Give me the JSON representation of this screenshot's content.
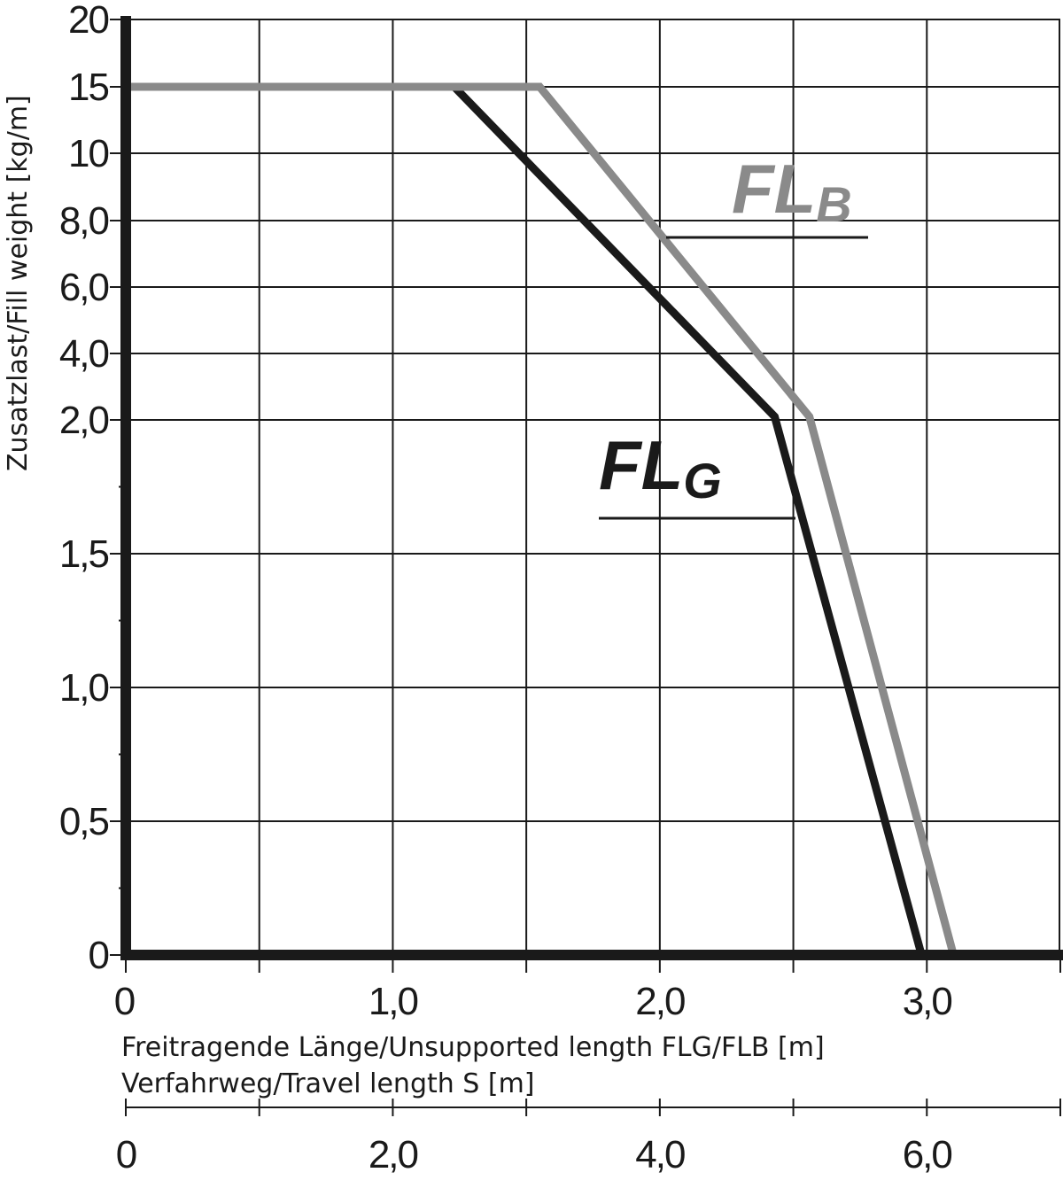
{
  "chart_data": {
    "type": "line",
    "ylabel": "Zusatzlast/Fill weight [kg/m]",
    "xlabel": "Freitragende Länge/Unsupported length FLG/FLB [m]",
    "x2label": "Verfahrweg/Travel length S [m]",
    "xlim": [
      0,
      3.5
    ],
    "x2lim": [
      0,
      7.0
    ],
    "x_ticks": [
      {
        "value": 0,
        "label": "0"
      },
      {
        "value": 1.0,
        "label": "1,0"
      },
      {
        "value": 2.0,
        "label": "2,0"
      },
      {
        "value": 3.0,
        "label": "3,0"
      }
    ],
    "x2_ticks": [
      {
        "value": 0,
        "label": "0"
      },
      {
        "value": 2.0,
        "label": "2,0"
      },
      {
        "value": 4.0,
        "label": "4,0"
      },
      {
        "value": 6.0,
        "label": "6,0"
      }
    ],
    "y_scale": "piecewise (non-linear)",
    "y_ticks": [
      {
        "value": 0,
        "label": "0"
      },
      {
        "value": 0.5,
        "label": "0,5"
      },
      {
        "value": 1.0,
        "label": "1,0"
      },
      {
        "value": 1.5,
        "label": "1,5"
      },
      {
        "value": 2.0,
        "label": "2,0"
      },
      {
        "value": 4.0,
        "label": "4,0"
      },
      {
        "value": 6.0,
        "label": "6,0"
      },
      {
        "value": 8.0,
        "label": "8,0"
      },
      {
        "value": 10,
        "label": "10"
      },
      {
        "value": 15,
        "label": "15"
      },
      {
        "value": 20,
        "label": "20"
      }
    ],
    "grid": true,
    "series": [
      {
        "name": "FL",
        "subscript": "G",
        "color": "#1a1a1a",
        "points": [
          [
            0,
            15
          ],
          [
            1.23,
            15
          ],
          [
            2.43,
            2.1
          ],
          [
            2.98,
            0
          ]
        ]
      },
      {
        "name": "FL",
        "subscript": "B",
        "color": "#8a8a8a",
        "points": [
          [
            0,
            15
          ],
          [
            1.55,
            15
          ],
          [
            2.56,
            2.1
          ],
          [
            3.1,
            0
          ]
        ]
      }
    ]
  }
}
